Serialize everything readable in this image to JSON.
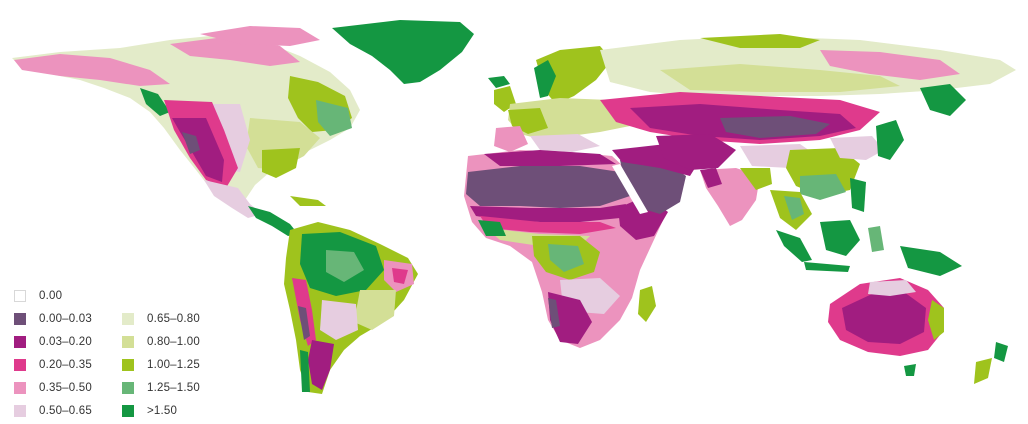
{
  "map": {
    "palette": {
      "c000": "#ffffff",
      "c003": "#6e4f78",
      "c020": "#a11d80",
      "c035": "#df3a8c",
      "c050": "#ec93be",
      "c065": "#e6cde0",
      "c080": "#e3ebc9",
      "c100": "#d3df96",
      "c125": "#9fc31d",
      "c150": "#67b677",
      "c151": "#149742"
    },
    "ocean_color": "#ffffff"
  },
  "legend": {
    "items": [
      {
        "label": "0.00",
        "color": "#ffffff"
      },
      {
        "label": "0.00–0.03",
        "color": "#6e4f78"
      },
      {
        "label": "0.03–0.20",
        "color": "#a11d80"
      },
      {
        "label": "0.20–0.35",
        "color": "#df3a8c"
      },
      {
        "label": "0.35–0.50",
        "color": "#ec93be"
      },
      {
        "label": "0.50–0.65",
        "color": "#e6cde0"
      },
      {
        "label": "0.65–0.80",
        "color": "#e3ebc9"
      },
      {
        "label": "0.80–1.00",
        "color": "#d3df96"
      },
      {
        "label": "1.00–1.25",
        "color": "#9fc31d"
      },
      {
        "label": "1.25–1.50",
        "color": "#67b677"
      },
      {
        "label": ">1.50",
        "color": "#149742"
      }
    ]
  }
}
